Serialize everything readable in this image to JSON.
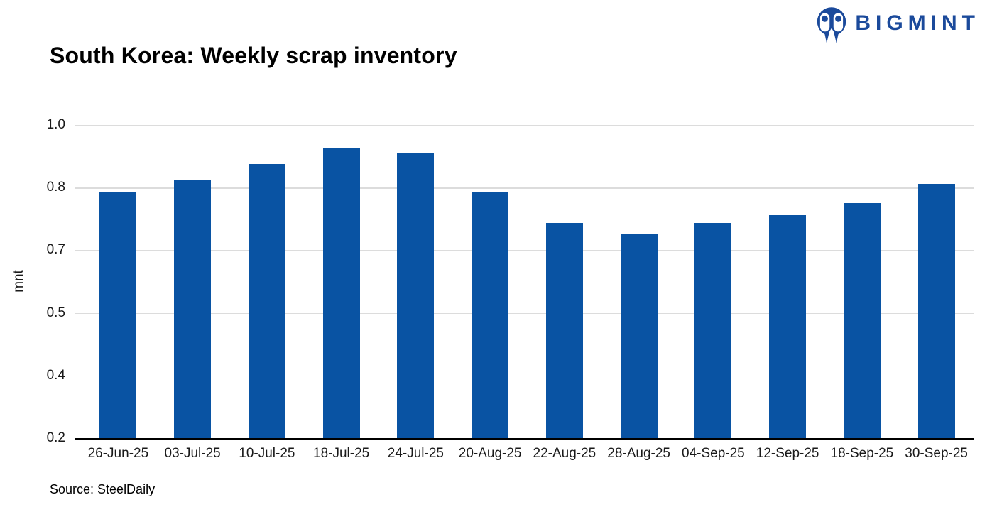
{
  "page": {
    "title": "South Korea: Weekly scrap inventory"
  },
  "logo": {
    "text": "BIGMINT"
  },
  "chart_data": {
    "type": "bar",
    "title": "South Korea: Weekly scrap inventory",
    "categories": [
      "26-Jun-25",
      "03-Jul-25",
      "10-Jul-25",
      "18-Jul-25",
      "24-Jul-25",
      "20-Aug-25",
      "22-Aug-25",
      "28-Aug-25",
      "04-Sep-25",
      "12-Sep-25",
      "18-Sep-25",
      "30-Sep-25"
    ],
    "values": [
      0.83,
      0.86,
      0.9,
      0.94,
      0.93,
      0.83,
      0.75,
      0.72,
      0.75,
      0.77,
      0.8,
      0.85
    ],
    "xlabel": "",
    "ylabel": "mnt",
    "ylim": [
      0.2,
      1.0
    ],
    "ytick_labels_top_to_bottom": [
      "1.0",
      "0.8",
      "0.7",
      "0.5",
      "0.4",
      "0.2"
    ],
    "grid": true,
    "legend": false,
    "bar_color": "#0953a3"
  },
  "footer": {
    "source": "Source: SteelDaily"
  },
  "colors": {
    "bar": "#0953a3",
    "logo_blue": "#1b4a9b",
    "gridline": "#dcdcdc",
    "axis": "#000000",
    "tick_text": "#1a1a1a"
  }
}
